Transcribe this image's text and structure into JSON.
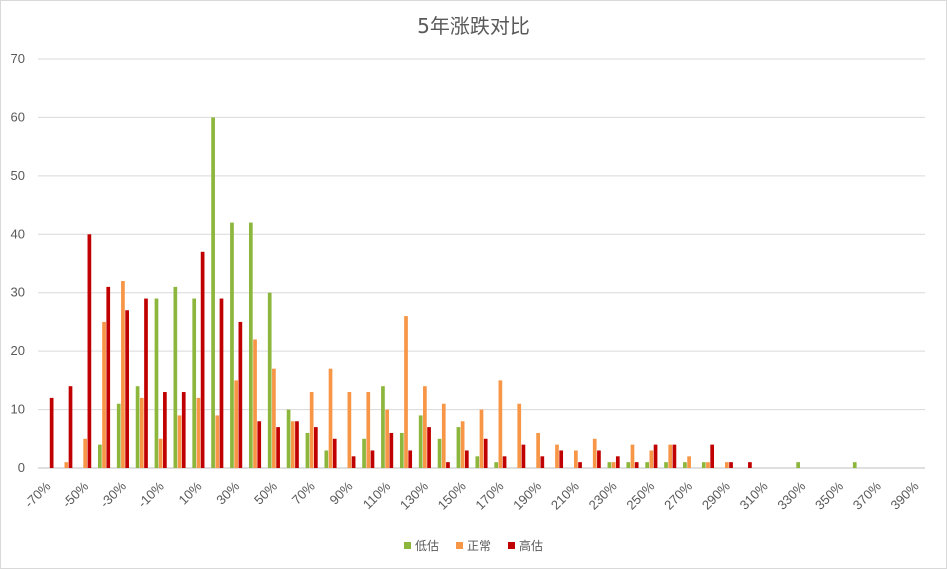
{
  "chart_data": {
    "type": "bar",
    "title": "5年涨跌对比",
    "xlabel": "",
    "ylabel": "",
    "ylim": [
      0,
      70
    ],
    "yticks": [
      0,
      10,
      20,
      30,
      40,
      50,
      60,
      70
    ],
    "grid": true,
    "legend": "bottom",
    "categories": [
      "-70%",
      "-60%",
      "-50%",
      "-40%",
      "-30%",
      "-20%",
      "-10%",
      "0%",
      "10%",
      "20%",
      "30%",
      "40%",
      "50%",
      "60%",
      "70%",
      "80%",
      "90%",
      "100%",
      "110%",
      "120%",
      "130%",
      "140%",
      "150%",
      "160%",
      "170%",
      "180%",
      "190%",
      "200%",
      "210%",
      "220%",
      "230%",
      "240%",
      "250%",
      "260%",
      "270%",
      "280%",
      "290%",
      "300%",
      "310%",
      "320%",
      "330%",
      "340%",
      "350%",
      "360%",
      "370%",
      "380%",
      "390%"
    ],
    "tick_labels": [
      "-70%",
      "-50%",
      "-30%",
      "-10%",
      "10%",
      "30%",
      "50%",
      "70%",
      "90%",
      "110%",
      "130%",
      "150%",
      "170%",
      "190%",
      "210%",
      "230%",
      "250%",
      "270%",
      "290%",
      "310%",
      "330%",
      "350%",
      "370%",
      "390%"
    ],
    "series": [
      {
        "name": "低估",
        "color": "#8cb63c",
        "values": [
          0,
          0,
          0,
          4,
          11,
          14,
          29,
          31,
          29,
          60,
          42,
          42,
          30,
          10,
          6,
          3,
          0,
          5,
          14,
          6,
          9,
          5,
          7,
          2,
          1,
          0,
          0,
          0,
          0,
          0,
          1,
          1,
          1,
          1,
          1,
          1,
          0,
          0,
          0,
          0,
          1,
          0,
          0,
          1,
          0,
          0,
          0
        ]
      },
      {
        "name": "正常",
        "color": "#f79646",
        "values": [
          0,
          1,
          5,
          25,
          32,
          12,
          5,
          9,
          12,
          9,
          15,
          22,
          17,
          8,
          13,
          17,
          13,
          13,
          10,
          26,
          14,
          11,
          8,
          10,
          15,
          11,
          6,
          4,
          3,
          5,
          1,
          4,
          3,
          4,
          2,
          1,
          1,
          0,
          0,
          0,
          0,
          0,
          0,
          0,
          0,
          0,
          0
        ]
      },
      {
        "name": "高估",
        "color": "#c00000",
        "values": [
          12,
          14,
          40,
          31,
          27,
          29,
          13,
          13,
          37,
          29,
          25,
          8,
          7,
          8,
          7,
          5,
          2,
          3,
          6,
          3,
          7,
          1,
          3,
          5,
          2,
          4,
          2,
          3,
          1,
          3,
          2,
          1,
          4,
          4,
          0,
          4,
          1,
          1,
          0,
          0,
          0,
          0,
          0,
          0,
          0,
          0,
          0
        ]
      }
    ]
  }
}
